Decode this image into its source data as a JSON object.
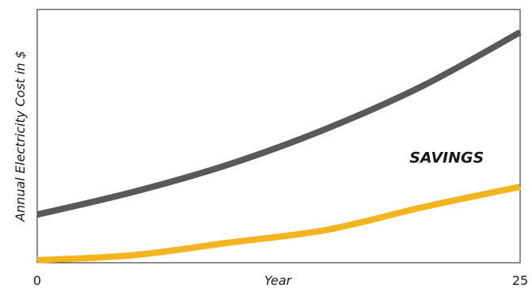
{
  "chart_data": {
    "type": "line",
    "xlabel": "Year",
    "ylabel": "Annual Electricity Cost in $",
    "xlim": [
      0,
      25
    ],
    "x_ticks": [
      {
        "value": 0,
        "label": "0"
      },
      {
        "value": 25,
        "label": "25"
      }
    ],
    "ylim": [
      0,
      100
    ],
    "grid": false,
    "legend": "none",
    "series": [
      {
        "color": "#595959",
        "x": [
          0,
          5,
          10,
          15,
          20,
          25
        ],
        "values": [
          19,
          28,
          39,
          53,
          70,
          91
        ]
      },
      {
        "color": "#f4b41f",
        "x": [
          0,
          5,
          10,
          15,
          20,
          25
        ],
        "values": [
          1,
          3,
          8,
          13,
          22,
          30
        ]
      }
    ],
    "annotations": [
      {
        "text": "SAVINGS",
        "x": 21.2,
        "y": 39.5
      }
    ]
  }
}
